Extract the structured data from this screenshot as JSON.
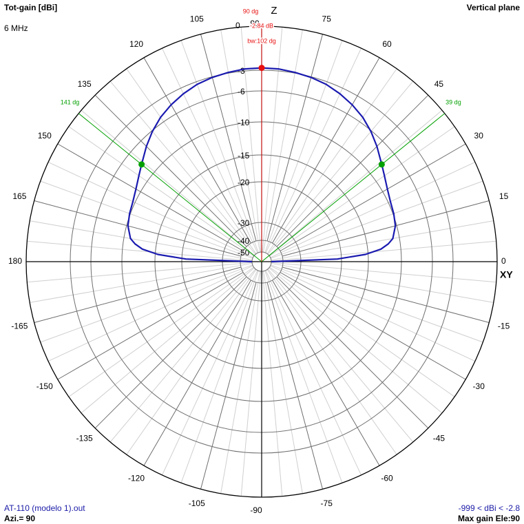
{
  "header": {
    "top_left_title": "Tot-gain [dBi]",
    "frequency": "6 MHz",
    "top_right_title": "Vertical plane"
  },
  "footer": {
    "file_name": "AT-110 (modelo 1).out",
    "azimuth": "Azi.= 90",
    "gain_range": "-999 < dBi < -2.8",
    "max_gain": "Max gain Ele:90"
  },
  "chart_data": {
    "type": "polar",
    "angle_unit": "deg",
    "axis_labels": {
      "vertical": "Z",
      "horizontal": "XY"
    },
    "angle_ticks": [
      0,
      15,
      30,
      45,
      60,
      75,
      90,
      105,
      120,
      135,
      150,
      165,
      180,
      -165,
      -150,
      -135,
      -120,
      -105,
      -90,
      -75,
      -60,
      -45,
      -30,
      -15
    ],
    "gain_rings_dbi": [
      0,
      -3,
      -6,
      -10,
      -15,
      -20,
      -30,
      -40,
      -50
    ],
    "gain_ring_labels": [
      "0",
      "-3",
      "-6",
      "-10",
      "-15",
      "-20",
      "-30",
      "-40",
      "-50"
    ],
    "series": [
      {
        "color": "#1a1ab0",
        "elevation_deg": [
          0,
          2,
          4,
          6,
          8,
          10,
          15,
          20,
          25,
          30,
          35,
          39,
          45,
          50,
          55,
          60,
          65,
          70,
          75,
          80,
          85,
          90,
          95,
          100,
          105,
          110,
          115,
          120,
          125,
          130,
          135,
          141,
          145,
          150,
          155,
          160,
          165,
          170,
          172,
          174,
          176,
          178,
          180
        ],
        "gain_dbi": [
          -50,
          -21,
          -15.5,
          -13,
          -11.8,
          -11,
          -10.2,
          -9.9,
          -9.7,
          -9.3,
          -8.7,
          -8.1,
          -7.0,
          -6.1,
          -5.2,
          -4.5,
          -3.9,
          -3.4,
          -3.1,
          -2.95,
          -2.86,
          -2.84,
          -2.86,
          -2.95,
          -3.1,
          -3.4,
          -3.9,
          -4.5,
          -5.2,
          -6.1,
          -7.0,
          -8.1,
          -8.7,
          -9.3,
          -9.7,
          -9.9,
          -10.2,
          -11,
          -11.8,
          -13,
          -15.5,
          -21,
          -50
        ]
      }
    ],
    "max_marker": {
      "angle_label": "90 dg",
      "gain_label": "-2.84 dB",
      "bw_label": "bw:102 dg",
      "elevation_deg": 90,
      "gain_dbi": -2.84,
      "color": "#e81010"
    },
    "beamwidth_markers": [
      {
        "label": "39 dg",
        "elevation_deg": 39,
        "gain_dbi": -8.1,
        "color": "#00a000"
      },
      {
        "label": "141 dg",
        "elevation_deg": 141,
        "gain_dbi": -8.1,
        "color": "#00a000"
      }
    ]
  }
}
